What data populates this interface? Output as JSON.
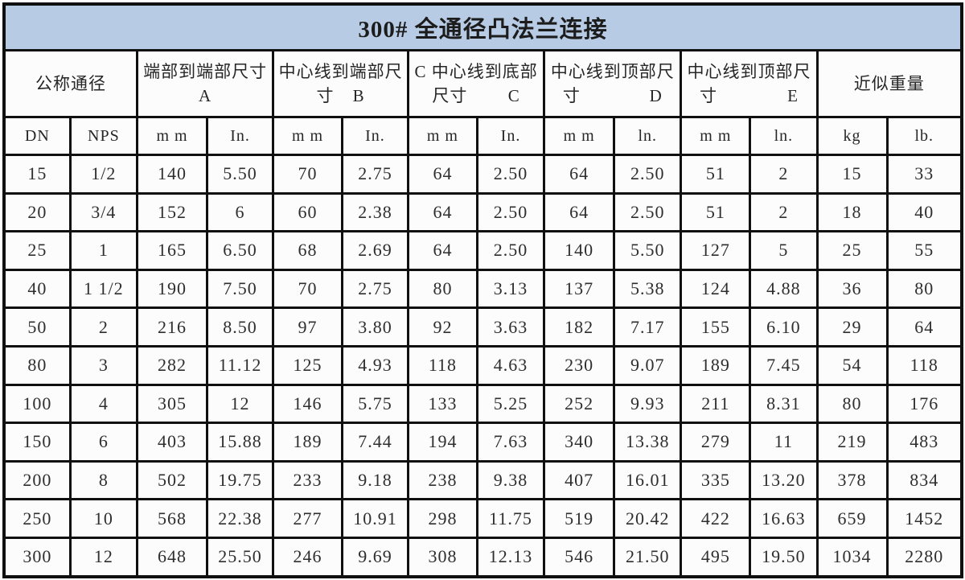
{
  "title": "300# 全通径凸法兰连接",
  "header": {
    "groups": [
      {
        "line1": "公称通径"
      },
      {
        "line1": "端部到端部尺寸",
        "prefix": "",
        "letter": "A"
      },
      {
        "line1": "中心线到端部尺",
        "prefix": "寸",
        "letter": "B"
      },
      {
        "line1": "C 中心线到底部",
        "prefix": "尺寸",
        "letter": "C"
      },
      {
        "line1": "中心线到顶部尺",
        "prefix": "寸",
        "letter": "D"
      },
      {
        "line1": "中心线到顶部尺",
        "prefix": "寸",
        "letter": "E"
      },
      {
        "line1": "近似重量"
      }
    ]
  },
  "table": {
    "subheaders": [
      "DN",
      "NPS",
      "m m",
      "In.",
      "m m",
      "In.",
      "m m",
      "In.",
      "m m",
      "ln.",
      "m m",
      "ln.",
      "kg",
      "lb."
    ],
    "rows": [
      [
        "15",
        "1/2",
        "140",
        "5.50",
        "70",
        "2.75",
        "64",
        "2.50",
        "64",
        "2.50",
        "51",
        "2",
        "15",
        "33"
      ],
      [
        "20",
        "3/4",
        "152",
        "6",
        "60",
        "2.38",
        "64",
        "2.50",
        "64",
        "2.50",
        "51",
        "2",
        "18",
        "40"
      ],
      [
        "25",
        "1",
        "165",
        "6.50",
        "68",
        "2.69",
        "64",
        "2.50",
        "140",
        "5.50",
        "127",
        "5",
        "25",
        "55"
      ],
      [
        "40",
        "1 1/2",
        "190",
        "7.50",
        "70",
        "2.75",
        "80",
        "3.13",
        "137",
        "5.38",
        "124",
        "4.88",
        "36",
        "80"
      ],
      [
        "50",
        "2",
        "216",
        "8.50",
        "97",
        "3.80",
        "92",
        "3.63",
        "182",
        "7.17",
        "155",
        "6.10",
        "29",
        "64"
      ],
      [
        "80",
        "3",
        "282",
        "11.12",
        "125",
        "4.93",
        "118",
        "4.63",
        "230",
        "9.07",
        "189",
        "7.45",
        "54",
        "118"
      ],
      [
        "100",
        "4",
        "305",
        "12",
        "146",
        "5.75",
        "133",
        "5.25",
        "252",
        "9.93",
        "211",
        "8.31",
        "80",
        "176"
      ],
      [
        "150",
        "6",
        "403",
        "15.88",
        "189",
        "7.44",
        "194",
        "7.63",
        "340",
        "13.38",
        "279",
        "11",
        "219",
        "483"
      ],
      [
        "200",
        "8",
        "502",
        "19.75",
        "233",
        "9.18",
        "238",
        "9.38",
        "407",
        "16.01",
        "335",
        "13.20",
        "378",
        "834"
      ],
      [
        "250",
        "10",
        "568",
        "22.38",
        "277",
        "10.91",
        "298",
        "11.75",
        "519",
        "20.42",
        "422",
        "16.63",
        "659",
        "1452"
      ],
      [
        "300",
        "12",
        "648",
        "25.50",
        "246",
        "9.69",
        "308",
        "12.13",
        "546",
        "21.50",
        "495",
        "19.50",
        "1034",
        "2280"
      ]
    ]
  },
  "colors": {
    "title_background": "#b8cbe4",
    "border": "#101010",
    "cell_background": "#fcfcfc"
  }
}
